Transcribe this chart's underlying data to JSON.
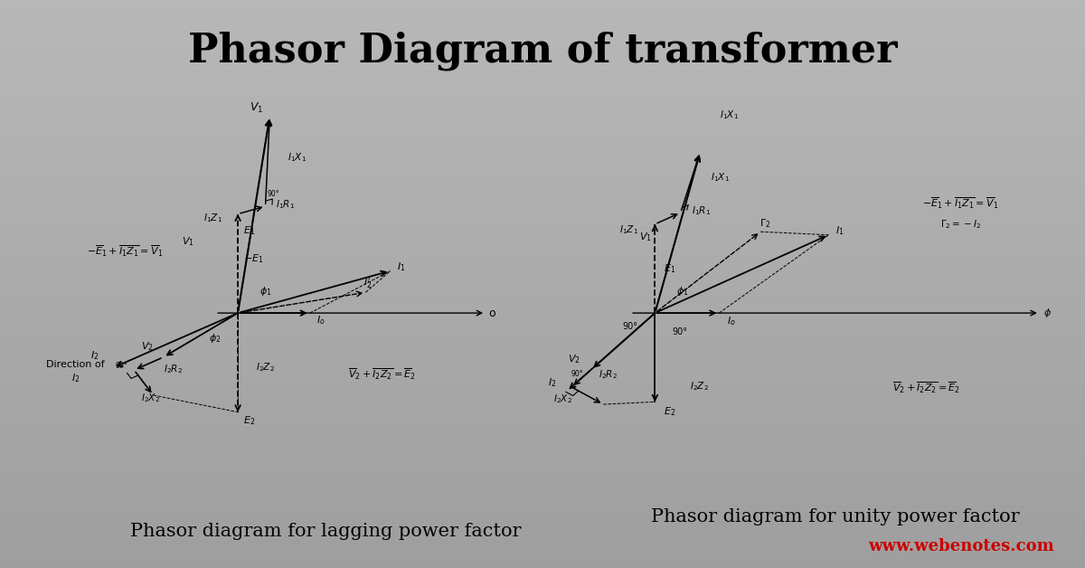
{
  "title": "Phasor Diagram of transformer",
  "title_fontsize": 32,
  "title_fontweight": "bold",
  "left_caption": "Phasor diagram for lagging power factor",
  "right_caption": "Phasor diagram for unity power factor",
  "website": "www.webenotes.com",
  "website_color": "#cc0000",
  "caption_fontsize": 15
}
